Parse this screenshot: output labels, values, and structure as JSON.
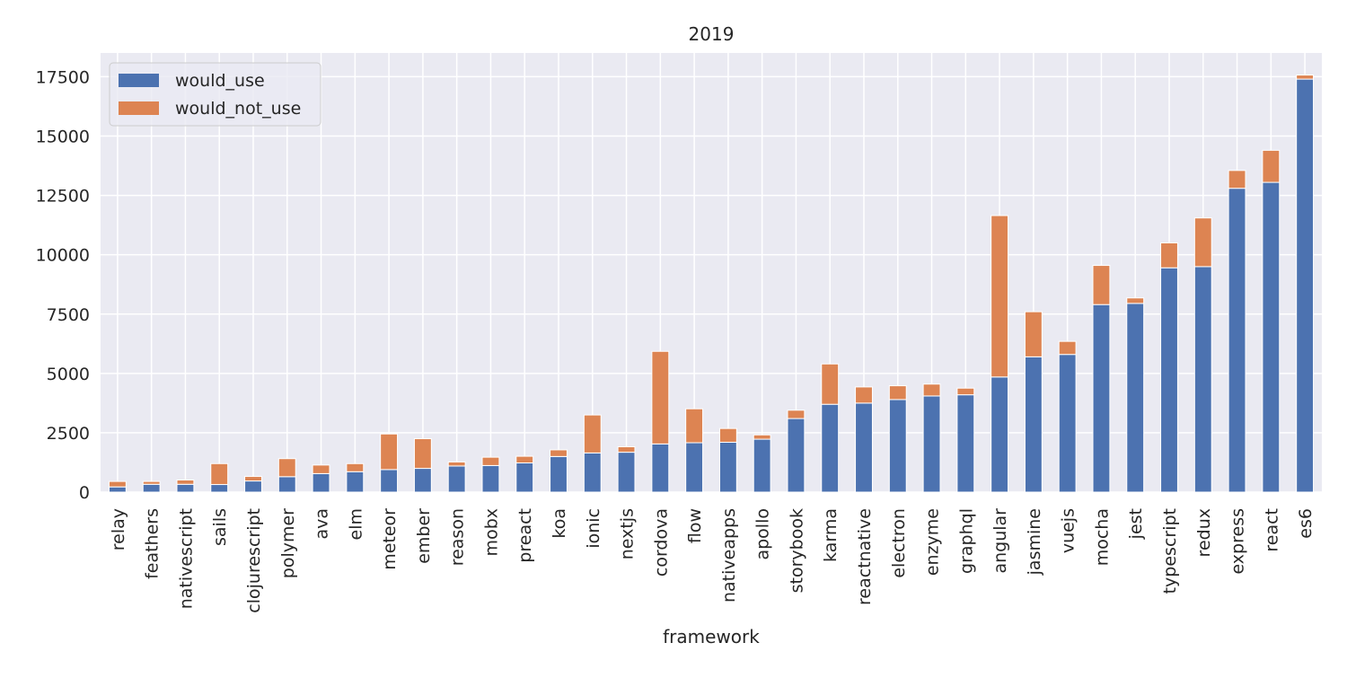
{
  "chart_data": {
    "type": "bar",
    "stacked": true,
    "title": "2019",
    "xlabel": "framework",
    "ylabel": "",
    "ylim": [
      0,
      18500
    ],
    "yticks": [
      0,
      2500,
      5000,
      7500,
      10000,
      12500,
      15000,
      17500
    ],
    "grid": true,
    "legend_position": "top-left",
    "categories": [
      "relay",
      "feathers",
      "nativescript",
      "sails",
      "clojurescript",
      "polymer",
      "ava",
      "elm",
      "meteor",
      "ember",
      "reason",
      "mobx",
      "preact",
      "koa",
      "ionic",
      "nextjs",
      "cordova",
      "flow",
      "nativeapps",
      "apollo",
      "storybook",
      "karma",
      "reactnative",
      "electron",
      "enzyme",
      "graphql",
      "angular",
      "jasmine",
      "vuejs",
      "mocha",
      "jest",
      "typescript",
      "redux",
      "express",
      "react",
      "es6"
    ],
    "series": [
      {
        "name": "would_use",
        "color": "#4c72b0",
        "values": [
          220,
          330,
          330,
          320,
          470,
          650,
          780,
          860,
          950,
          1000,
          1100,
          1120,
          1230,
          1500,
          1650,
          1680,
          2030,
          2080,
          2100,
          2230,
          3100,
          3700,
          3750,
          3900,
          4050,
          4100,
          4850,
          5700,
          5800,
          7900,
          7950,
          9450,
          9500,
          12800,
          13050,
          17400
        ]
      },
      {
        "name": "would_not_use",
        "color": "#dd8452",
        "values": [
          230,
          120,
          180,
          880,
          190,
          760,
          360,
          340,
          1500,
          1250,
          170,
          350,
          280,
          280,
          1600,
          230,
          3900,
          1430,
          580,
          180,
          350,
          1700,
          680,
          580,
          500,
          280,
          6800,
          1900,
          550,
          1650,
          230,
          1050,
          2050,
          750,
          1350,
          170
        ]
      }
    ]
  }
}
